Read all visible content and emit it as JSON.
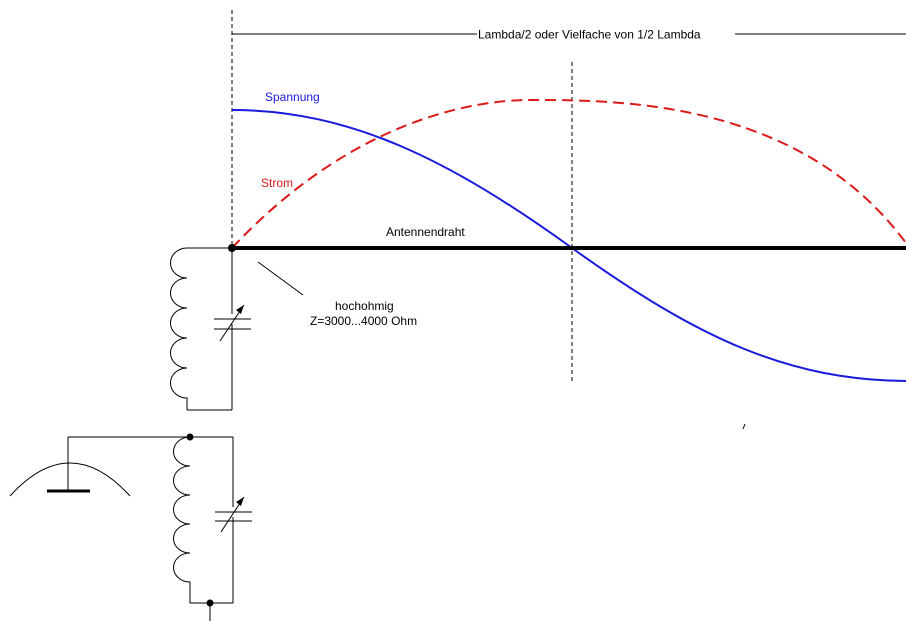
{
  "labels": {
    "wavelength": "Lambda/2 oder Vielfache von 1/2 Lambda",
    "voltage": "Spannung",
    "current": "Strom",
    "antenna_wire": "Antennendraht",
    "impedance_1": "hochohmig",
    "impedance_2": "Z=3000...4000 Ohm"
  },
  "colors": {
    "voltage": "#1a1adc",
    "current": "#dc1a1a",
    "wire": "#000000",
    "text": "#000000"
  },
  "icons": {
    "antenna_coupling": "inductor-icon",
    "tuning": "variable-capacitor-icon",
    "ground": "dish-antenna-icon"
  }
}
